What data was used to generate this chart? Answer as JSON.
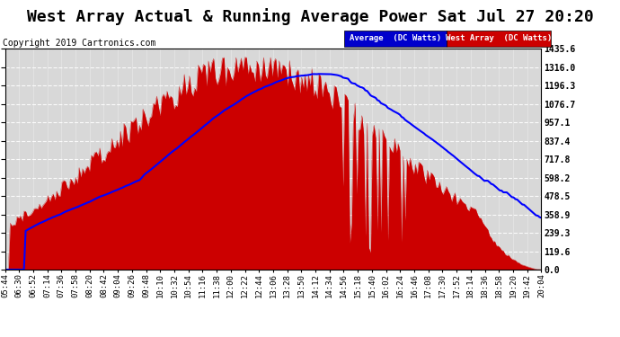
{
  "title": "West Array Actual & Running Average Power Sat Jul 27 20:20",
  "copyright": "Copyright 2019 Cartronics.com",
  "legend_labels": [
    "Average  (DC Watts)",
    "West Array  (DC Watts)"
  ],
  "legend_bg_colors": [
    "#0000cc",
    "#cc0000"
  ],
  "yticks": [
    0.0,
    119.6,
    239.3,
    358.9,
    478.5,
    598.2,
    717.8,
    837.4,
    957.1,
    1076.7,
    1196.3,
    1316.0,
    1435.6
  ],
  "ymax": 1435.6,
  "ymin": 0.0,
  "bg_color": "#ffffff",
  "plot_bg_color": "#d8d8d8",
  "grid_color": "#ffffff",
  "bar_color": "#cc0000",
  "line_color": "#0000ff",
  "title_fontsize": 13,
  "tick_fontsize": 7,
  "copyright_fontsize": 7,
  "xtick_labels": [
    "05:44",
    "06:30",
    "06:52",
    "07:14",
    "07:36",
    "07:58",
    "08:20",
    "08:42",
    "09:04",
    "09:26",
    "09:48",
    "10:10",
    "10:32",
    "10:54",
    "11:16",
    "11:38",
    "12:00",
    "12:22",
    "12:44",
    "13:06",
    "13:28",
    "13:50",
    "14:12",
    "14:34",
    "14:56",
    "15:18",
    "15:40",
    "16:02",
    "16:24",
    "16:46",
    "17:08",
    "17:30",
    "17:52",
    "18:14",
    "18:36",
    "18:58",
    "19:20",
    "19:42",
    "20:04"
  ]
}
